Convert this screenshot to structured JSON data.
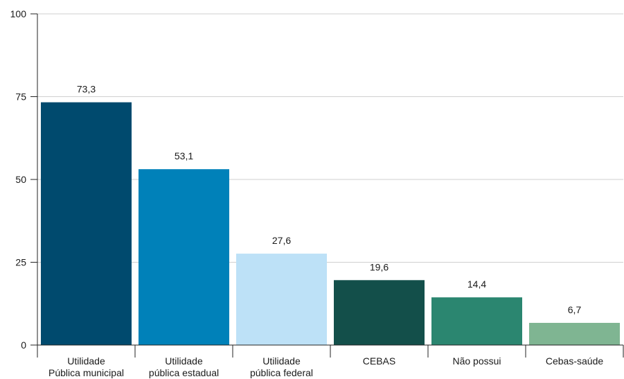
{
  "chart_data": {
    "type": "bar",
    "title": "",
    "xlabel": "",
    "ylabel": "",
    "ylim": [
      0,
      100
    ],
    "yticks": [
      "0",
      "25",
      "50",
      "75",
      "100"
    ],
    "grid": true,
    "categories": [
      [
        "Utilidade",
        "Pública municipal"
      ],
      [
        "Utilidade",
        "pública estadual"
      ],
      [
        "Utilidade",
        "pública federal"
      ],
      [
        "CEBAS"
      ],
      [
        "Não possui"
      ],
      [
        "Cebas-saúde"
      ]
    ],
    "values": [
      73.3,
      53.1,
      27.6,
      19.6,
      14.4,
      6.7
    ],
    "value_labels": [
      "73,3",
      "53,1",
      "27,6",
      "19,6",
      "14,4",
      "6,7"
    ],
    "colors": [
      "#004a6e",
      "#0081b9",
      "#bde1f7",
      "#134f4a",
      "#2b8670",
      "#7fb592"
    ]
  }
}
